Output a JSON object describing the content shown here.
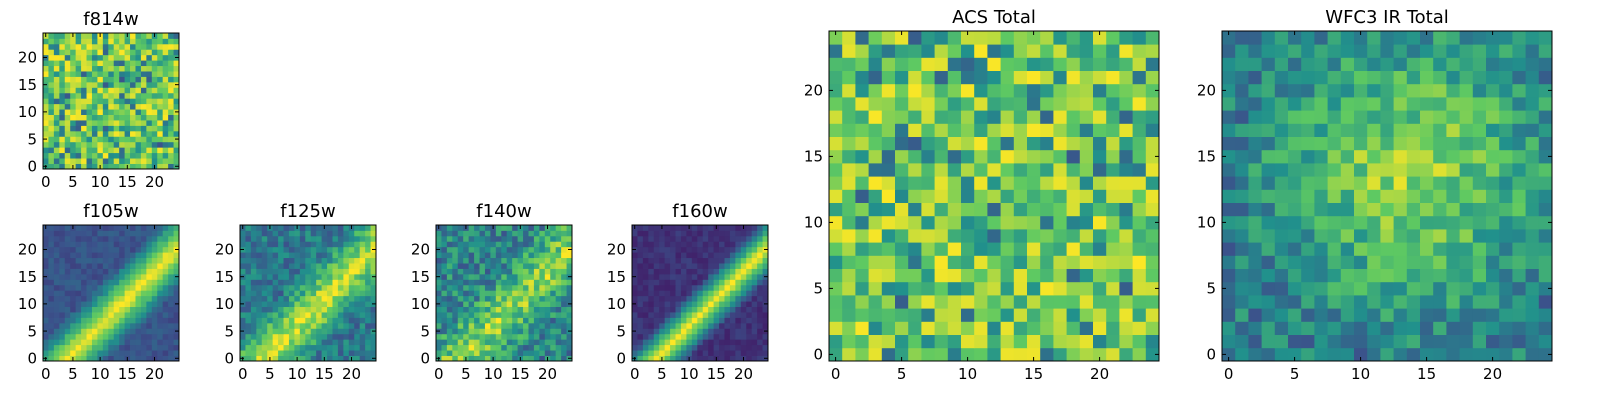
{
  "figure": {
    "colormap": [
      "#440154",
      "#3b528b",
      "#21918c",
      "#5ec962",
      "#fde725"
    ]
  },
  "chart_data": [
    {
      "type": "heatmap",
      "title": "f814w",
      "pattern": "noise",
      "seed": 11,
      "grid_size": [
        25,
        25
      ],
      "xlim": [
        0,
        24
      ],
      "ylim": [
        0,
        24
      ],
      "xticks": [
        0,
        5,
        10,
        15,
        20
      ],
      "yticks": [
        0,
        5,
        10,
        15,
        20
      ]
    },
    {
      "type": "heatmap",
      "title": "f105w",
      "pattern": "diagonal",
      "seed": 21,
      "grid_size": [
        25,
        25
      ],
      "xlim": [
        0,
        24
      ],
      "ylim": [
        0,
        24
      ],
      "xticks": [
        0,
        5,
        10,
        15,
        20
      ],
      "yticks": [
        0,
        5,
        10,
        15,
        20
      ]
    },
    {
      "type": "heatmap",
      "title": "f125w",
      "pattern": "diagonal-noisy",
      "seed": 31,
      "grid_size": [
        25,
        25
      ],
      "xlim": [
        0,
        24
      ],
      "ylim": [
        0,
        24
      ],
      "xticks": [
        0,
        5,
        10,
        15,
        20
      ],
      "yticks": [
        0,
        5,
        10,
        15,
        20
      ]
    },
    {
      "type": "heatmap",
      "title": "f140w",
      "pattern": "diagonal-faint",
      "seed": 41,
      "grid_size": [
        25,
        25
      ],
      "xlim": [
        0,
        24
      ],
      "ylim": [
        0,
        24
      ],
      "xticks": [
        0,
        5,
        10,
        15,
        20
      ],
      "yticks": [
        0,
        5,
        10,
        15,
        20
      ]
    },
    {
      "type": "heatmap",
      "title": "f160w",
      "pattern": "diagonal-sharp",
      "seed": 51,
      "grid_size": [
        25,
        25
      ],
      "xlim": [
        0,
        24
      ],
      "ylim": [
        0,
        24
      ],
      "xticks": [
        0,
        5,
        10,
        15,
        20
      ],
      "yticks": [
        0,
        5,
        10,
        15,
        20
      ]
    },
    {
      "type": "heatmap",
      "title": "ACS Total",
      "pattern": "noise",
      "seed": 61,
      "grid_size": [
        25,
        25
      ],
      "xlim": [
        0,
        24
      ],
      "ylim": [
        0,
        24
      ],
      "xticks": [
        0,
        5,
        10,
        15,
        20
      ],
      "yticks": [
        0,
        5,
        10,
        15,
        20
      ]
    },
    {
      "type": "heatmap",
      "title": "WFC3 IR Total",
      "pattern": "center-noisy",
      "seed": 71,
      "grid_size": [
        25,
        25
      ],
      "xlim": [
        0,
        24
      ],
      "ylim": [
        0,
        24
      ],
      "xticks": [
        0,
        5,
        10,
        15,
        20
      ],
      "yticks": [
        0,
        5,
        10,
        15,
        20
      ]
    }
  ]
}
